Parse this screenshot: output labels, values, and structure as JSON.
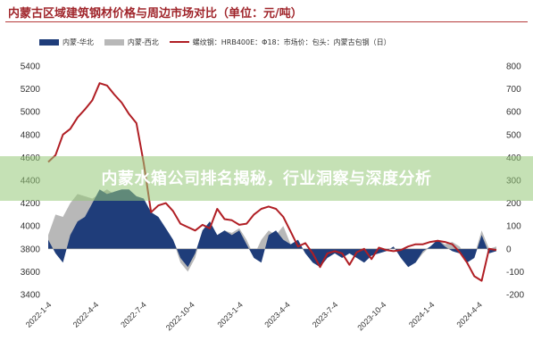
{
  "title": "内蒙古区域建筑钢材价格与周边市场对比（单位：元/吨）",
  "banner": "内蒙水箱公司排名揭秘，行业洞察与深度分析",
  "colors": {
    "north": "#1f3d7a",
    "west": "#b8b8b8",
    "price": "#b01e24",
    "title": "#a0252b"
  },
  "chart_data": {
    "type": "area",
    "title": "内蒙古区域建筑钢材价格与周边市场对比（单位：元/吨）",
    "legend_position": "top",
    "grid": false,
    "legend": [
      {
        "name": "内蒙-华北",
        "kind": "area"
      },
      {
        "name": "内蒙-西北",
        "kind": "area"
      },
      {
        "name": "螺纹钢：HRB400E：Φ18：市场价：包头：内蒙古包钢（日）",
        "kind": "line"
      }
    ],
    "left_axis": {
      "min": 3400,
      "max": 5400,
      "ticks": [
        "5400",
        "5200",
        "5000",
        "4800",
        "4600",
        "4400",
        "4200",
        "4000",
        "3800",
        "3600",
        "3400"
      ]
    },
    "right_axis": {
      "min": -200,
      "max": 800,
      "ticks": [
        "800",
        "700",
        "600",
        "500",
        "400",
        "300",
        "200",
        "100",
        "0",
        "-100",
        "-200"
      ]
    },
    "x_ticks": [
      "2022-1-4",
      "2022-4-4",
      "2022-7-4",
      "2022-10-4",
      "2023-1-4",
      "2023-4-4",
      "2023-7-4",
      "2023-10-4",
      "2024-1-4",
      "2024-4-4"
    ],
    "x": [
      "2022-01-04",
      "2022-01-18",
      "2022-02-01",
      "2022-02-15",
      "2022-03-01",
      "2022-03-15",
      "2022-03-29",
      "2022-04-12",
      "2022-04-26",
      "2022-05-10",
      "2022-05-24",
      "2022-06-07",
      "2022-06-21",
      "2022-07-05",
      "2022-07-19",
      "2022-08-02",
      "2022-08-16",
      "2022-08-30",
      "2022-09-13",
      "2022-09-27",
      "2022-10-11",
      "2022-10-25",
      "2022-11-08",
      "2022-11-22",
      "2022-12-06",
      "2022-12-20",
      "2023-01-03",
      "2023-01-17",
      "2023-01-31",
      "2023-02-14",
      "2023-02-28",
      "2023-03-14",
      "2023-03-28",
      "2023-04-11",
      "2023-04-25",
      "2023-05-09",
      "2023-05-23",
      "2023-06-06",
      "2023-06-20",
      "2023-07-04",
      "2023-07-18",
      "2023-08-01",
      "2023-08-15",
      "2023-08-29",
      "2023-09-12",
      "2023-09-26",
      "2023-10-10",
      "2023-10-24",
      "2023-11-07",
      "2023-11-21",
      "2023-12-05",
      "2023-12-19",
      "2024-01-02",
      "2024-01-16",
      "2024-01-30",
      "2024-02-13",
      "2024-02-27",
      "2024-03-12",
      "2024-03-26",
      "2024-04-09",
      "2024-04-23",
      "2024-05-07"
    ],
    "series": [
      {
        "name": "螺纹钢：HRB400E：Φ18：市场价：包头：内蒙古包钢（日）",
        "type": "line",
        "axis": "left",
        "values": [
          4560,
          4620,
          4800,
          4850,
          4950,
          5020,
          5100,
          5250,
          5230,
          5150,
          5080,
          4980,
          4900,
          4550,
          4120,
          4180,
          4200,
          4130,
          4020,
          3990,
          3960,
          4010,
          3980,
          4150,
          4060,
          4050,
          4010,
          4020,
          4100,
          4150,
          4170,
          4150,
          4080,
          3950,
          3820,
          3850,
          3760,
          3640,
          3760,
          3780,
          3760,
          3660,
          3770,
          3800,
          3710,
          3810,
          3790,
          3780,
          3790,
          3820,
          3840,
          3840,
          3860,
          3870,
          3860,
          3840,
          3770,
          3680,
          3560,
          3520,
          3800,
          3790
        ]
      },
      {
        "name": "内蒙-华北",
        "type": "area",
        "axis": "right",
        "values": [
          40,
          -20,
          -60,
          60,
          120,
          140,
          200,
          260,
          240,
          250,
          260,
          260,
          230,
          220,
          160,
          140,
          90,
          40,
          -40,
          -80,
          -20,
          80,
          120,
          60,
          80,
          60,
          80,
          20,
          -40,
          -60,
          60,
          80,
          40,
          20,
          40,
          -20,
          -60,
          -80,
          -40,
          -20,
          -40,
          -20,
          -40,
          -60,
          -30,
          -20,
          -10,
          10,
          -40,
          -80,
          -60,
          -10,
          10,
          40,
          10,
          -10,
          -20,
          -60,
          -40,
          60,
          -20,
          -10
        ]
      },
      {
        "name": "内蒙-西北",
        "type": "area",
        "axis": "right",
        "values": [
          60,
          150,
          140,
          200,
          240,
          230,
          220,
          240,
          260,
          240,
          230,
          240,
          230,
          200,
          140,
          120,
          60,
          40,
          -60,
          -100,
          -40,
          80,
          120,
          60,
          80,
          70,
          90,
          40,
          -30,
          40,
          80,
          60,
          100,
          20,
          30,
          -20,
          -40,
          -60,
          -30,
          -10,
          -30,
          -10,
          -20,
          -40,
          -20,
          -20,
          -10,
          10,
          -30,
          -70,
          -60,
          -20,
          10,
          40,
          20,
          30,
          10,
          -40,
          -30,
          80,
          0,
          10
        ]
      }
    ]
  }
}
